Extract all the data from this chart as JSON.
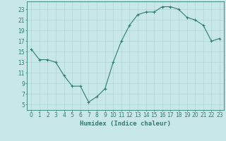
{
  "x": [
    0,
    1,
    2,
    3,
    4,
    5,
    6,
    7,
    8,
    9,
    10,
    11,
    12,
    13,
    14,
    15,
    16,
    17,
    18,
    19,
    20,
    21,
    22,
    23
  ],
  "y": [
    15.5,
    13.5,
    13.5,
    13,
    10.5,
    8.5,
    8.5,
    5.5,
    6.5,
    8,
    13,
    17,
    20,
    22,
    22.5,
    22.5,
    23.5,
    23.5,
    23,
    21.5,
    21,
    20,
    17,
    17.5
  ],
  "line_color": "#2e7d6e",
  "marker": "+",
  "marker_color": "#2e7d6e",
  "bg_color": "#c8e8e8",
  "grid_color": "#b0d4d4",
  "tick_color": "#2e7d6e",
  "xlabel": "Humidex (Indice chaleur)",
  "ylabel": "",
  "xlim": [
    -0.5,
    23.5
  ],
  "ylim": [
    4,
    24.5
  ],
  "yticks": [
    5,
    7,
    9,
    11,
    13,
    15,
    17,
    19,
    21,
    23
  ],
  "xticks": [
    0,
    1,
    2,
    3,
    4,
    5,
    6,
    7,
    8,
    9,
    10,
    11,
    12,
    13,
    14,
    15,
    16,
    17,
    18,
    19,
    20,
    21,
    22,
    23
  ],
  "tick_fontsize": 5.5,
  "xlabel_fontsize": 6.5,
  "figsize": [
    3.2,
    2.0
  ],
  "dpi": 100
}
